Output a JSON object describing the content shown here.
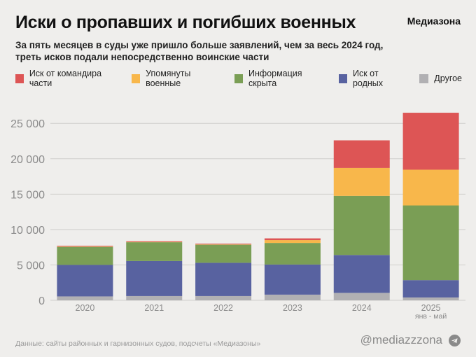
{
  "header": {
    "title": "Иски о пропавших и погибших военных",
    "brand": "Медиазона",
    "subtitle": "За пять месяцев в суды уже пришло больше заявлений, чем за весь 2024 год, треть исков подали непосредственно воинские части"
  },
  "footer": {
    "source": "Данные: сайты районных и гарнизонных судов, подсчеты «Медиазоны»",
    "handle": "@mediazzzona"
  },
  "chart_data": {
    "type": "bar",
    "stacked": true,
    "categories": [
      "2020",
      "2021",
      "2022",
      "2023",
      "2024",
      "2025"
    ],
    "category_sublabels": [
      "",
      "",
      "",
      "",
      "",
      "янв - май"
    ],
    "ylim": [
      0,
      27000
    ],
    "yticks": [
      0,
      5000,
      10000,
      15000,
      20000,
      25000
    ],
    "ytick_labels": [
      "0",
      "5 000",
      "10 000",
      "15 000",
      "20 000",
      "25 000"
    ],
    "grid": true,
    "legend_position": "top",
    "series": [
      {
        "name": "Другое",
        "color": "#b1b0b3",
        "values": [
          550,
          600,
          600,
          800,
          1050,
          400
        ]
      },
      {
        "name": "Иск от родных",
        "color": "#5862a0",
        "values": [
          4450,
          4950,
          4700,
          4250,
          5350,
          2450
        ]
      },
      {
        "name": "Информация скрыта",
        "color": "#7a9e55",
        "values": [
          2550,
          2650,
          2550,
          3050,
          8350,
          10550
        ]
      },
      {
        "name": "Упомянуты военные",
        "color": "#f8b74b",
        "values": [
          50,
          50,
          50,
          400,
          3950,
          5050
        ]
      },
      {
        "name": "Иск от командира части",
        "color": "#dd5555",
        "values": [
          100,
          100,
          100,
          250,
          3900,
          8050
        ]
      }
    ],
    "legend_order": [
      "Иск от командира части",
      "Упомянуты военные",
      "Информация скрыта",
      "Иск от родных",
      "Другое"
    ]
  }
}
